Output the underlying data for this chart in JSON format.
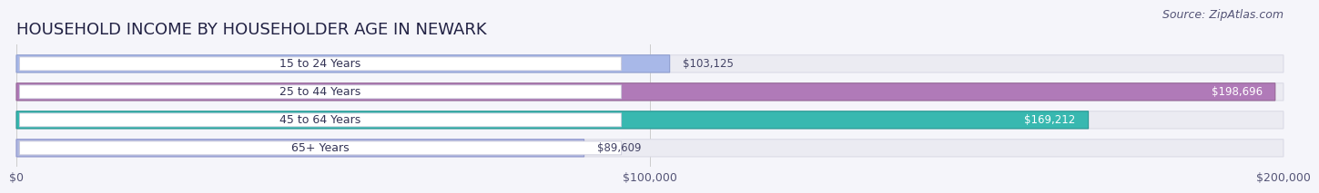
{
  "title": "HOUSEHOLD INCOME BY HOUSEHOLDER AGE IN NEWARK",
  "source": "Source: ZipAtlas.com",
  "categories": [
    "15 to 24 Years",
    "25 to 44 Years",
    "45 to 64 Years",
    "65+ Years"
  ],
  "values": [
    103125,
    198696,
    169212,
    89609
  ],
  "bar_colors": [
    "#a8b8e8",
    "#b07ab8",
    "#38b8b0",
    "#b0b8e0"
  ],
  "bar_edge_colors": [
    "#8898cc",
    "#906090",
    "#20908c",
    "#8890cc"
  ],
  "xlim": [
    0,
    200000
  ],
  "xticks": [
    0,
    100000,
    200000
  ],
  "xtick_labels": [
    "$0",
    "$100,000",
    "$200,000"
  ],
  "background_color": "#f5f5fa",
  "bar_bg_color": "#ebebf2",
  "bar_bg_edge": "#d8d8e4",
  "title_fontsize": 13,
  "source_fontsize": 9,
  "label_fontsize": 9,
  "value_fontsize": 8.5
}
